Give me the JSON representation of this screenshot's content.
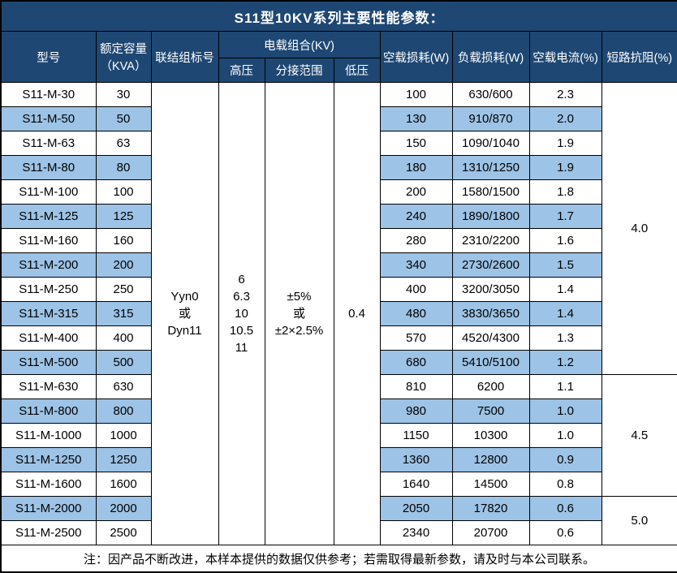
{
  "title": "S11型10KV系列主要性能参数：",
  "colors": {
    "header_bg": "#1E4773",
    "stripe_bg": "#9DC3E6",
    "border": "#000000",
    "header_text": "#FFFFFF"
  },
  "header": {
    "model": "型号",
    "capacity_line1": "额定容量",
    "capacity_line2": "（KVA）",
    "connection": "联结组标号",
    "load_combo": "电载组合(KV)",
    "hv": "高压",
    "tap": "分接范围",
    "lv": "低压",
    "no_load_loss": "空载损耗(W)",
    "load_loss": "负载损耗(W)",
    "no_load_current": "空载电流(%)",
    "impedance": "短路抗阻(%)"
  },
  "merged": {
    "connection": [
      "Yyn0",
      "或",
      "Dyn11"
    ],
    "hv": [
      "6",
      "6.3",
      "10",
      "10.5",
      "11"
    ],
    "tap": [
      "±5%",
      "或",
      "±2×2.5%"
    ],
    "lv": "0.4"
  },
  "rows": [
    {
      "model": "S11-M-30",
      "capacity": "30",
      "no_load_loss": "100",
      "load_loss": "630/600",
      "no_load_current": "2.3"
    },
    {
      "model": "S11-M-50",
      "capacity": "50",
      "no_load_loss": "130",
      "load_loss": "910/870",
      "no_load_current": "2.0"
    },
    {
      "model": "S11-M-63",
      "capacity": "63",
      "no_load_loss": "150",
      "load_loss": "1090/1040",
      "no_load_current": "1.9"
    },
    {
      "model": "S11-M-80",
      "capacity": "80",
      "no_load_loss": "180",
      "load_loss": "1310/1250",
      "no_load_current": "1.9"
    },
    {
      "model": "S11-M-100",
      "capacity": "100",
      "no_load_loss": "200",
      "load_loss": "1580/1500",
      "no_load_current": "1.8"
    },
    {
      "model": "S11-M-125",
      "capacity": "125",
      "no_load_loss": "240",
      "load_loss": "1890/1800",
      "no_load_current": "1.7"
    },
    {
      "model": "S11-M-160",
      "capacity": "160",
      "no_load_loss": "280",
      "load_loss": "2310/2200",
      "no_load_current": "1.6"
    },
    {
      "model": "S11-M-200",
      "capacity": "200",
      "no_load_loss": "340",
      "load_loss": "2730/2600",
      "no_load_current": "1.5"
    },
    {
      "model": "S11-M-250",
      "capacity": "250",
      "no_load_loss": "400",
      "load_loss": "3200/3050",
      "no_load_current": "1.4"
    },
    {
      "model": "S11-M-315",
      "capacity": "315",
      "no_load_loss": "480",
      "load_loss": "3830/3650",
      "no_load_current": "1.4"
    },
    {
      "model": "S11-M-400",
      "capacity": "400",
      "no_load_loss": "570",
      "load_loss": "4520/4300",
      "no_load_current": "1.3"
    },
    {
      "model": "S11-M-500",
      "capacity": "500",
      "no_load_loss": "680",
      "load_loss": "5410/5100",
      "no_load_current": "1.2"
    },
    {
      "model": "S11-M-630",
      "capacity": "630",
      "no_load_loss": "810",
      "load_loss": "6200",
      "no_load_current": "1.1"
    },
    {
      "model": "S11-M-800",
      "capacity": "800",
      "no_load_loss": "980",
      "load_loss": "7500",
      "no_load_current": "1.0"
    },
    {
      "model": "S11-M-1000",
      "capacity": "1000",
      "no_load_loss": "1150",
      "load_loss": "10300",
      "no_load_current": "1.0"
    },
    {
      "model": "S11-M-1250",
      "capacity": "1250",
      "no_load_loss": "1360",
      "load_loss": "12800",
      "no_load_current": "0.9"
    },
    {
      "model": "S11-M-1600",
      "capacity": "1600",
      "no_load_loss": "1640",
      "load_loss": "14500",
      "no_load_current": "0.8"
    },
    {
      "model": "S11-M-2000",
      "capacity": "2000",
      "no_load_loss": "2050",
      "load_loss": "17820",
      "no_load_current": "0.6"
    },
    {
      "model": "S11-M-2500",
      "capacity": "2500",
      "no_load_loss": "2340",
      "load_loss": "20700",
      "no_load_current": "0.6"
    }
  ],
  "impedance_groups": [
    {
      "value": "4.0",
      "span": 12
    },
    {
      "value": "4.5",
      "span": 5
    },
    {
      "value": "5.0",
      "span": 2
    }
  ],
  "note": "注：因产品不断改进，本样本提供的数据仅供参考；若需取得最新参数，请及时与本公司联系。"
}
